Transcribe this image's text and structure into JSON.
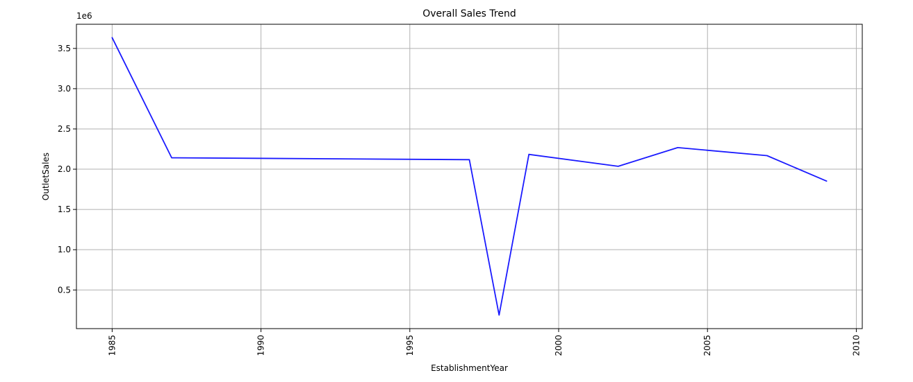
{
  "chart_data": {
    "type": "line",
    "title": "Overall Sales Trend",
    "xlabel": "EstablishmentYear",
    "ylabel": "OutletSales",
    "y_offset_label": "1e6",
    "grid": true,
    "xlim": [
      1983.8,
      2010.2
    ],
    "ylim": [
      0.02,
      3.8
    ],
    "xticks": [
      1985,
      1990,
      1995,
      2000,
      2005,
      2010
    ],
    "xtick_labels": [
      "1985",
      "1990",
      "1995",
      "2000",
      "2005",
      "2010"
    ],
    "yticks": [
      0.5,
      1.0,
      1.5,
      2.0,
      2.5,
      3.0,
      3.5
    ],
    "ytick_labels": [
      "0.5",
      "1.0",
      "1.5",
      "2.0",
      "2.5",
      "3.0",
      "3.5"
    ],
    "series": [
      {
        "color": "#1a1aff",
        "x": [
          1985,
          1987,
          1997,
          1998,
          1999,
          2002,
          2004,
          2007,
          2009
        ],
        "y": [
          3.634,
          2.142,
          2.118,
          0.188,
          2.184,
          2.036,
          2.268,
          2.168,
          1.852
        ]
      }
    ]
  }
}
